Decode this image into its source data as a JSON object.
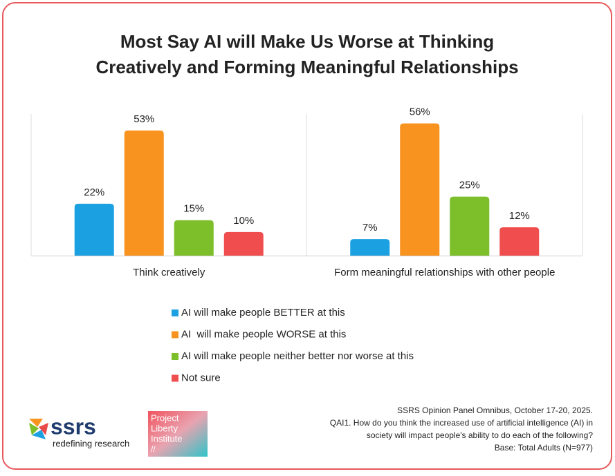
{
  "chart_data": {
    "type": "bar",
    "title": [
      "Most Say AI will Make Us Worse at Thinking",
      "Creatively and Forming Meaningful Relationships"
    ],
    "categories": [
      "Think creatively",
      "Form meaningful relationships with other people"
    ],
    "series": [
      {
        "name": "AI will make people BETTER at this",
        "color": "#1ba1e2",
        "values": [
          22,
          7
        ],
        "value_labels": [
          "22%",
          "7%"
        ]
      },
      {
        "name": "AI  will make people WORSE at this",
        "color": "#f7931e",
        "values": [
          53,
          56
        ],
        "value_labels": [
          "53%",
          "56%"
        ]
      },
      {
        "name": "AI will make people neither better nor worse at this",
        "color": "#7cbf2a",
        "values": [
          15,
          25
        ],
        "value_labels": [
          "15%",
          "25%"
        ]
      },
      {
        "name": "Not sure",
        "color": "#f04e4e",
        "values": [
          10,
          12
        ],
        "value_labels": [
          "10%",
          "12%"
        ]
      }
    ],
    "ylim": [
      0,
      60
    ]
  },
  "footer": {
    "source": [
      "SSRS Opinion Panel Omnibus, October 17-20, 2025.",
      "QAI1. How do you think the increased use of artificial intelligence (AI) in",
      "society will impact people's ability to do each of the following?",
      "Base: Total Adults (N=977)"
    ]
  },
  "logos": {
    "ssrs": "ssrs",
    "ssrs_tagline": "redefining research",
    "pli": [
      "Project",
      "Liberty",
      "Institute",
      "//"
    ]
  }
}
